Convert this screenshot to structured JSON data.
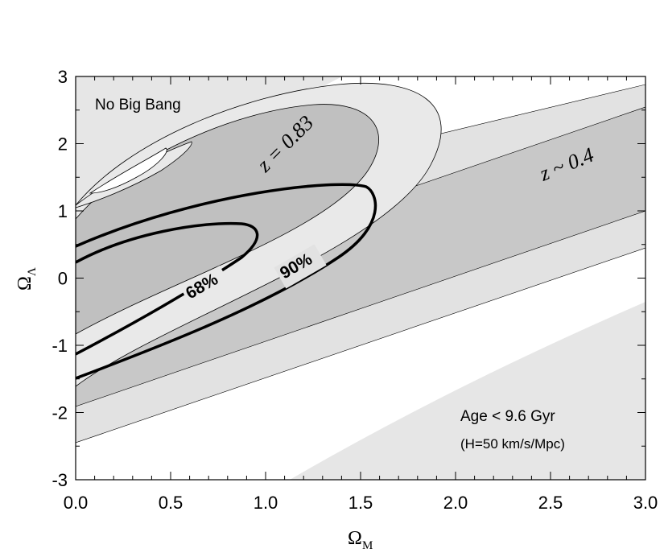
{
  "chart_data": {
    "type": "contour",
    "xlabel_main": "Ω",
    "xlabel_sub": "M",
    "ylabel_main": "Ω",
    "ylabel_sub": "Λ",
    "xlim": [
      0,
      3
    ],
    "ylim": [
      -3,
      3
    ],
    "x_ticks": [
      0.0,
      0.5,
      1.0,
      1.5,
      2.0,
      2.5,
      3.0
    ],
    "x_tick_labels": [
      "0.0",
      "0.5",
      "1.0",
      "1.5",
      "2.0",
      "2.5",
      "3.0"
    ],
    "y_ticks": [
      3,
      2,
      1,
      0,
      -1,
      -2,
      -3
    ],
    "y_tick_labels": [
      "3",
      "2",
      "1",
      "0",
      "-1",
      "-2",
      "-3"
    ],
    "regions": [
      {
        "name": "No Big Bang",
        "label": "No Big Bang",
        "color": "#e6e6e6"
      },
      {
        "name": "Age limit",
        "label": "Age < 9.6 Gyr",
        "sublabel": "(H=50 km/s/Mpc)",
        "color": "#e6e6e6"
      }
    ],
    "constraints": [
      {
        "name": "z ~ 0.4 band",
        "label": "z ~ 0.4",
        "outer_color": "#e2e2e2",
        "inner_color": "#c8c8c8",
        "outer_band_omega_lambda_at_0": [
          -2.5,
          1.4
        ],
        "inner_band_omega_lambda_at_0": [
          -1.95,
          0.85
        ],
        "slope": 1.0
      },
      {
        "name": "z = 0.83 ellipses",
        "label": "z = 0.83",
        "outer_color": "#e9e9e9",
        "inner_color": "#c0c0c0"
      }
    ],
    "confidence_contours": [
      {
        "label": "68%",
        "nose_omega_m": 0.95,
        "nose_omega_lambda": 0.65
      },
      {
        "label": "90%",
        "nose_omega_m": 1.57,
        "nose_omega_lambda": 1.3
      }
    ]
  }
}
